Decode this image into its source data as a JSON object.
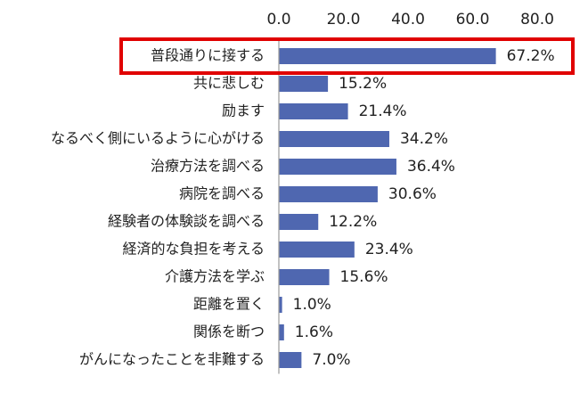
{
  "chart_data": {
    "type": "bar",
    "orientation": "horizontal",
    "categories": [
      "普段通りに接する",
      "共に悲しむ",
      "励ます",
      "なるべく側にいるように心がける",
      "治療方法を調べる",
      "病院を調べる",
      "経験者の体験談を調べる",
      "経済的な負担を考える",
      "介護方法を学ぶ",
      "距離を置く",
      "関係を断つ",
      "がんになったことを非難する"
    ],
    "values": [
      67.2,
      15.2,
      21.4,
      34.2,
      36.4,
      30.6,
      12.2,
      23.4,
      15.6,
      1.0,
      1.6,
      7.0
    ],
    "value_labels": [
      "67.2%",
      "15.2%",
      "21.4%",
      "34.2%",
      "36.4%",
      "30.6%",
      "12.2%",
      "23.4%",
      "15.6%",
      "1.0%",
      "1.6%",
      "7.0%"
    ],
    "xticks": [
      0,
      20,
      40,
      60,
      80
    ],
    "xtick_labels": [
      "0.0",
      "20.0",
      "40.0",
      "60.0",
      "80.0"
    ],
    "xlim": [
      0,
      80
    ],
    "xaxis_position": "top",
    "grid": false,
    "bar_color": "#4F67B0",
    "highlight": {
      "category_index": 0,
      "color": "#E00000"
    }
  }
}
